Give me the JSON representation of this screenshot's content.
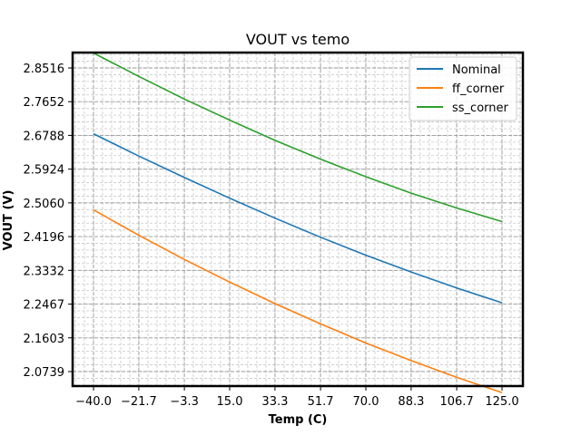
{
  "chart_data": {
    "type": "line",
    "title": "VOUT vs temo",
    "xlabel": "Temp (C)",
    "ylabel": "VOUT (V)",
    "x": [
      -40,
      -21.7,
      -3.3,
      15,
      33.3,
      51.7,
      70,
      88.3,
      106.7,
      125
    ],
    "xlim": [
      -40,
      125
    ],
    "ylim": [
      2.0739,
      2.8516
    ],
    "xticks": [
      "−40.0",
      "−21.7",
      "−3.3",
      "15.0",
      "33.3",
      "51.7",
      "70.0",
      "88.3",
      "106.7",
      "125.0"
    ],
    "xtick_values": [
      -40,
      -21.7,
      -3.3,
      15,
      33.3,
      51.7,
      70,
      88.3,
      106.7,
      125
    ],
    "yticks": [
      "2.0739",
      "2.1603",
      "2.2467",
      "2.3332",
      "2.4196",
      "2.5060",
      "2.5924",
      "2.6788",
      "2.7652",
      "2.8516"
    ],
    "ytick_values": [
      2.0739,
      2.1603,
      2.2467,
      2.3332,
      2.4196,
      2.506,
      2.5924,
      2.6788,
      2.7652,
      2.8516
    ],
    "grid": "on (major and minor, dashed)",
    "legend": "top-right",
    "series": [
      {
        "name": "Nominal",
        "color": "#1f77b4",
        "values": [
          2.683,
          2.626,
          2.571,
          2.518,
          2.467,
          2.418,
          2.372,
          2.329,
          2.288,
          2.25
        ]
      },
      {
        "name": "ff_corner",
        "color": "#ff7f0e",
        "values": [
          2.488,
          2.423,
          2.361,
          2.303,
          2.248,
          2.196,
          2.147,
          2.102,
          2.059,
          2.02
        ]
      },
      {
        "name": "ss_corner",
        "color": "#2ca02c",
        "values": [
          2.89,
          2.83,
          2.772,
          2.718,
          2.666,
          2.618,
          2.573,
          2.531,
          2.493,
          2.458
        ]
      }
    ]
  }
}
